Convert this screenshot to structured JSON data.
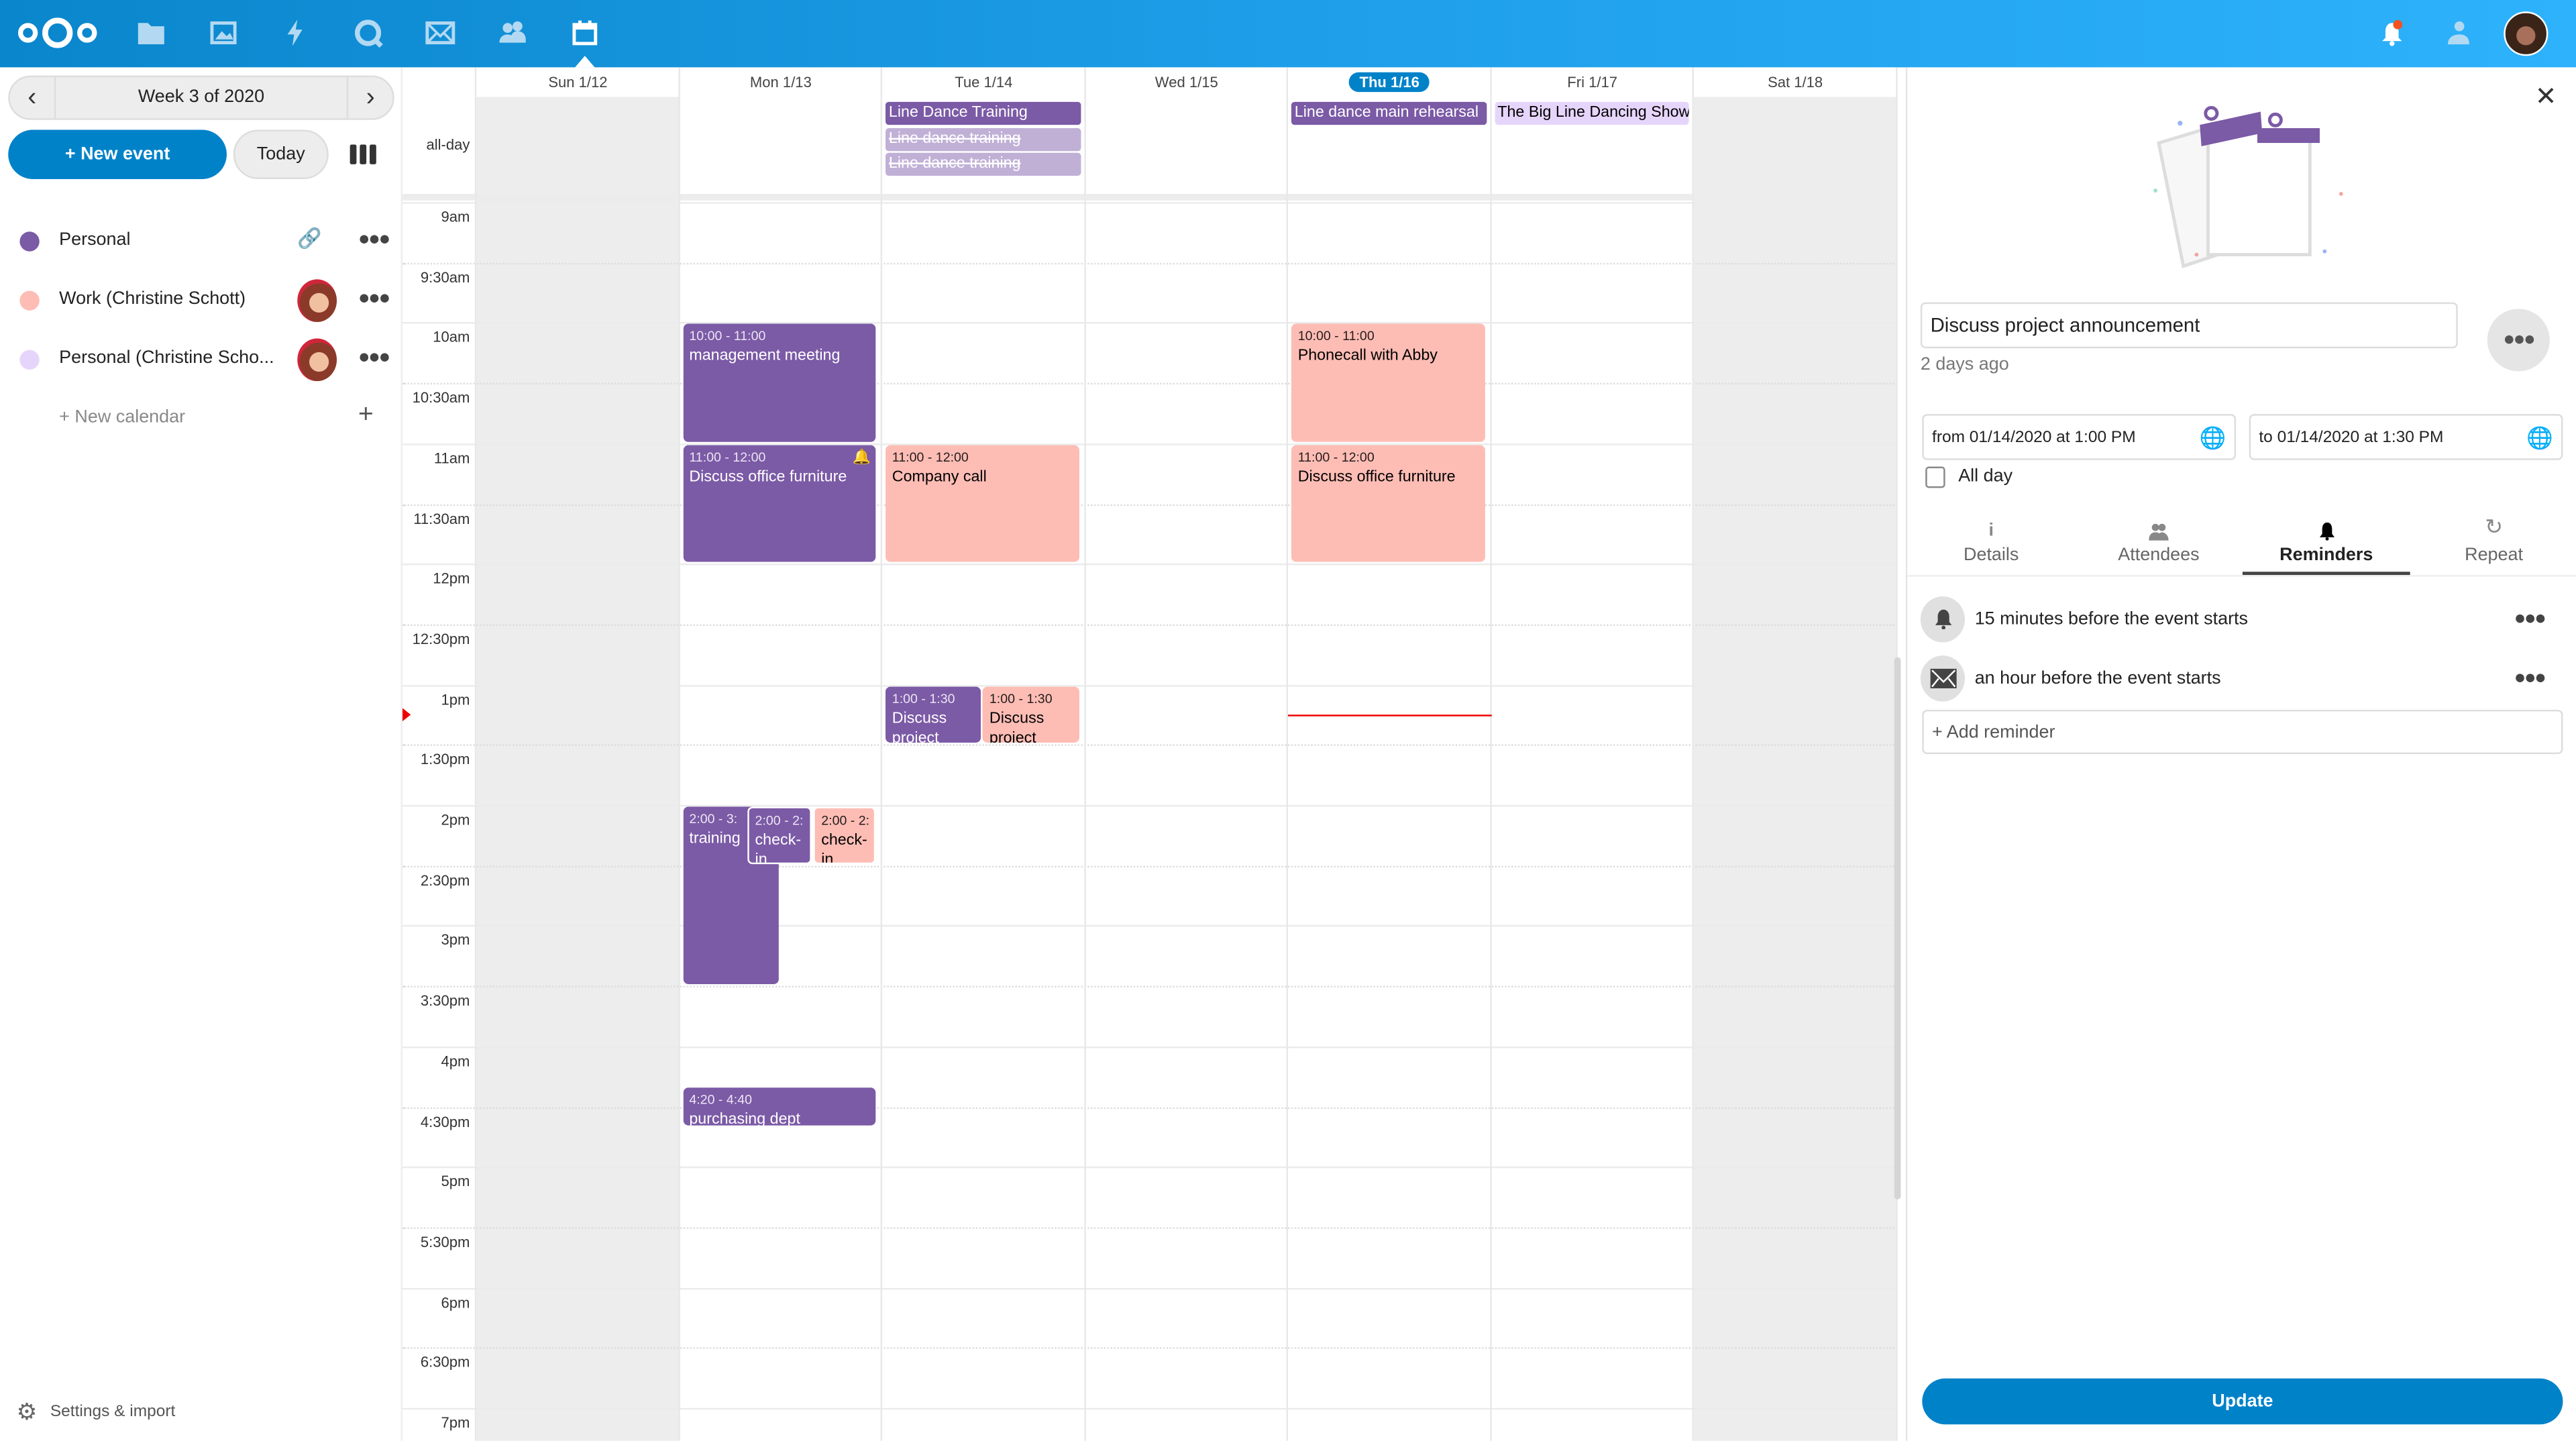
{
  "header": {
    "apps": [
      "files-icon",
      "photos-icon",
      "activity-icon",
      "talk-icon",
      "mail-icon",
      "contacts-icon",
      "calendar-icon"
    ],
    "active_app": "calendar-icon",
    "right_icons": [
      "notifications-icon",
      "contacts-menu-icon",
      "user-avatar"
    ]
  },
  "sidebar": {
    "week_label": "Week 3 of 2020",
    "new_event": "+ New event",
    "today": "Today",
    "calendars": [
      {
        "name": "Personal",
        "color": "#7b5aa6",
        "shared_link": true
      },
      {
        "name": "Work (Christine Schott)",
        "color": "#fdbdb5",
        "avatar": true
      },
      {
        "name": "Personal (Christine Scho...",
        "color": "#e6d5fb",
        "avatar": true
      }
    ],
    "new_calendar": "+ New calendar",
    "settings": "Settings & import"
  },
  "calendar": {
    "allday_label": "all-day",
    "days": [
      "Sun 1/12",
      "Mon 1/13",
      "Tue 1/14",
      "Wed 1/15",
      "Thu 1/16",
      "Fri 1/17",
      "Sat 1/18"
    ],
    "today_index": 4,
    "time_labels": [
      "9am",
      "9:30am",
      "10am",
      "10:30am",
      "11am",
      "11:30am",
      "12pm",
      "12:30pm",
      "1pm",
      "1:30pm",
      "2pm",
      "2:30pm",
      "3pm",
      "3:30pm",
      "4pm",
      "4:30pm",
      "5pm",
      "5:30pm",
      "6pm",
      "6:30pm",
      "7pm"
    ],
    "now_time": "1:15pm",
    "colors": {
      "personal": "#7b5aa6",
      "work": "#fdbdb5",
      "personal2": "#e6d5fb",
      "cancelled": "#c0b0d6"
    },
    "allday_events": [
      {
        "day": 2,
        "title": "Line Dance Training",
        "cal": "personal"
      },
      {
        "day": 2,
        "title": "Line dance training",
        "cal": "cancelled",
        "cancelled": true
      },
      {
        "day": 2,
        "title": "Line dance training",
        "cal": "cancelled",
        "cancelled": true
      },
      {
        "day": 4,
        "title": "Line dance main rehearsal",
        "cal": "personal"
      },
      {
        "day": 5,
        "title": "The Big Line Dancing Show",
        "cal": "personal2"
      }
    ],
    "events": [
      {
        "day": 1,
        "start": 10,
        "end": 11,
        "time": "10:00 - 11:00",
        "title": "management meeting",
        "cal": "personal"
      },
      {
        "day": 1,
        "start": 11,
        "end": 12,
        "time": "11:00 - 12:00",
        "title": "Discuss office furniture",
        "cal": "personal",
        "reminder": true
      },
      {
        "day": 1,
        "start": 14,
        "end": 15.5,
        "time": "2:00 - 3:",
        "title": "training",
        "cal": "personal"
      },
      {
        "day": 1,
        "start": 14,
        "end": 14.5,
        "time": "2:00 - 2:",
        "title": "check-in",
        "cal": "personal"
      },
      {
        "day": 1,
        "start": 14,
        "end": 14.5,
        "time": "2:00 - 2:",
        "title": "check-in",
        "cal": "work"
      },
      {
        "day": 1,
        "start": 16.333,
        "end": 16.667,
        "time": "4:20 - 4:40",
        "title": "purchasing dept",
        "cal": "personal"
      },
      {
        "day": 2,
        "start": 11,
        "end": 12,
        "time": "11:00 - 12:00",
        "title": "Company call",
        "cal": "work"
      },
      {
        "day": 2,
        "start": 13,
        "end": 13.5,
        "time": "1:00 - 1:30",
        "title": "Discuss project announcement",
        "cal": "personal"
      },
      {
        "day": 2,
        "start": 13,
        "end": 13.5,
        "time": "1:00 - 1:30",
        "title": "Discuss project",
        "cal": "work"
      },
      {
        "day": 4,
        "start": 10,
        "end": 11,
        "time": "10:00 - 11:00",
        "title": "Phonecall with Abby",
        "cal": "work"
      },
      {
        "day": 4,
        "start": 11,
        "end": 12,
        "time": "11:00 - 12:00",
        "title": "Discuss office furniture",
        "cal": "work"
      }
    ]
  },
  "panel": {
    "title_value": "Discuss project announcement",
    "modified": "2 days ago",
    "from": "from 01/14/2020 at 1:00 PM",
    "to": "to 01/14/2020 at 1:30 PM",
    "all_day_label": "All day",
    "all_day_checked": false,
    "tabs": [
      "Details",
      "Attendees",
      "Reminders",
      "Repeat"
    ],
    "active_tab": "Reminders",
    "reminders": [
      {
        "type": "bell-icon",
        "text": "15 minutes before the event starts"
      },
      {
        "type": "mail-icon",
        "text": "an hour before the event starts"
      }
    ],
    "add_reminder": "+ Add reminder",
    "update": "Update"
  }
}
